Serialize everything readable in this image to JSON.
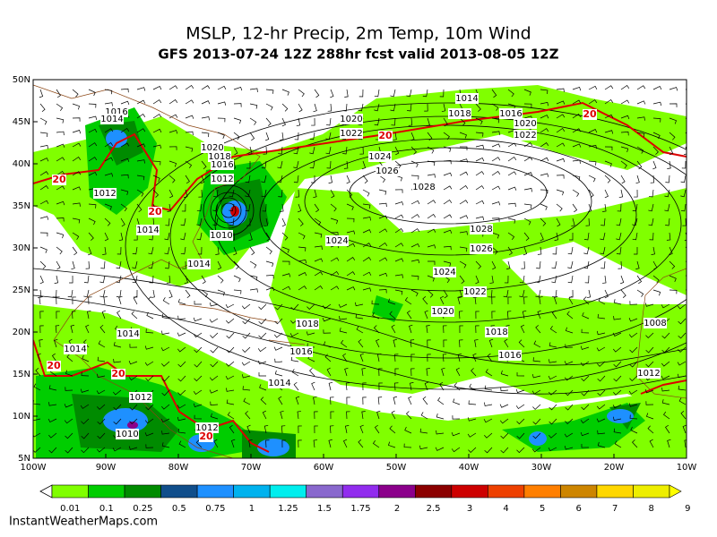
{
  "header": {
    "title": "MSLP, 12-hr Precip, 2m Temp, 10m Wind",
    "subtitle": "GFS 2013-07-24 12Z 288hr fcst valid 2013-08-05 12Z"
  },
  "map": {
    "lat_labels": [
      "50N",
      "45N",
      "40N",
      "35N",
      "30N",
      "25N",
      "20N",
      "15N",
      "10N",
      "5N"
    ],
    "lon_labels": [
      "100W",
      "90W",
      "80W",
      "70W",
      "60W",
      "50W",
      "40W",
      "30W",
      "20W",
      "10W"
    ],
    "isobar_labels": [
      "1014",
      "1016",
      "1014",
      "1018",
      "1016",
      "1020",
      "1020",
      "1022",
      "1022",
      "1020",
      "1018",
      "1016",
      "1024",
      "1026",
      "1012",
      "1028",
      "1012",
      "1014",
      "1010",
      "1024",
      "1028",
      "1026",
      "1014",
      "1024",
      "1022",
      "1020",
      "1008",
      "1018",
      "1018",
      "1014",
      "1016",
      "1016",
      "1014",
      "1012",
      "1014",
      "1012",
      "1012",
      "1010"
    ],
    "temp_labels": [
      "20",
      "20",
      "20",
      "20",
      "20",
      "20",
      "20"
    ]
  },
  "colorbar": {
    "labels": [
      "0.01",
      "0.1",
      "0.25",
      "0.5",
      "0.75",
      "1",
      "1.25",
      "1.5",
      "1.75",
      "2",
      "2.5",
      "3",
      "4",
      "5",
      "6",
      "7",
      "8",
      "9"
    ],
    "colors": [
      "#80ff00",
      "#00cd00",
      "#008b00",
      "#104e8b",
      "#1e90ff",
      "#00b2ee",
      "#00eeee",
      "#8968cd",
      "#912cee",
      "#8b008b",
      "#8b0000",
      "#cd0000",
      "#ee4000",
      "#ff7f00",
      "#cd8500",
      "#ffd700",
      "#eeee00",
      "#ffff00"
    ]
  },
  "footer": {
    "credit": "InstantWeatherMaps.com"
  }
}
